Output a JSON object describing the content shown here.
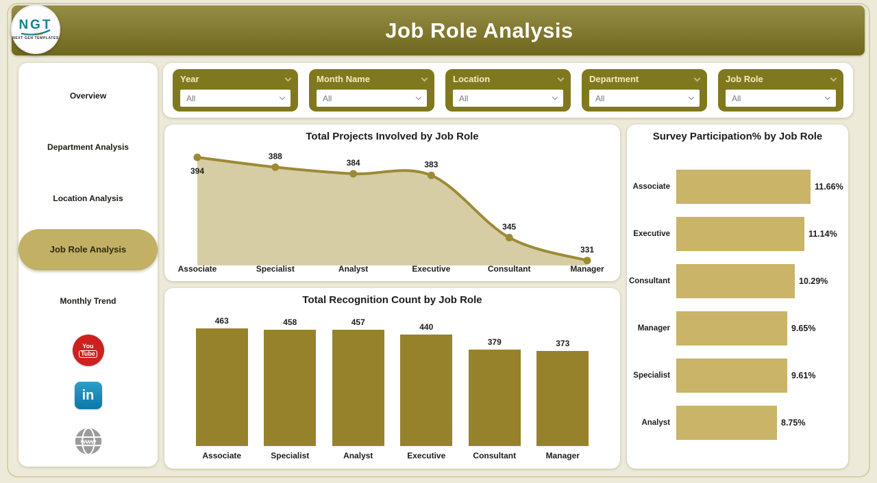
{
  "header": {
    "title": "Job Role Analysis",
    "logo": {
      "text": "NGT",
      "subtext": "NEXT GEN TEMPLATES"
    }
  },
  "filters": {
    "items": [
      {
        "label": "Year",
        "value": "All"
      },
      {
        "label": "Month Name",
        "value": "All"
      },
      {
        "label": "Location",
        "value": "All"
      },
      {
        "label": "Department",
        "value": "All"
      },
      {
        "label": "Job Role",
        "value": "All"
      }
    ]
  },
  "sidebar": {
    "items": [
      {
        "label": "Overview",
        "active": false
      },
      {
        "label": "Department Analysis",
        "active": false
      },
      {
        "label": "Location Analysis",
        "active": false
      },
      {
        "label": "Job Role Analysis",
        "active": true
      },
      {
        "label": "Monthly Trend",
        "active": false
      }
    ],
    "social": [
      {
        "name": "youtube",
        "lines": [
          "You",
          "Tube"
        ],
        "color": "#cd201f"
      },
      {
        "name": "linkedin",
        "lines": [
          "in"
        ],
        "color": "#0e76a8"
      },
      {
        "name": "website",
        "lines": [
          "www"
        ],
        "color": "#9b9b9b"
      }
    ]
  },
  "theme": {
    "page_bg": "#edead9",
    "header_gradient_top": "#958d45",
    "header_gradient_bottom": "#6e671c",
    "filter_tile": "#80781f",
    "filter_title_text": "#f3edbe",
    "active_pill": "#c2b065",
    "line_color": "#9d8a34",
    "area_fill": "#d6cda5",
    "bar_color": "#97822c",
    "hbar_color": "#c9b468"
  },
  "chart_data": [
    {
      "type": "area",
      "title": "Total Projects Involved by Job Role",
      "categories": [
        "Associate",
        "Specialist",
        "Analyst",
        "Executive",
        "Consultant",
        "Manager"
      ],
      "values": [
        394,
        388,
        384,
        383,
        345,
        331
      ],
      "ylim": [
        328,
        400
      ],
      "grid": false,
      "data_labels": true,
      "legend": "none"
    },
    {
      "type": "bar",
      "title": "Total Recognition Count by Job Role",
      "categories": [
        "Associate",
        "Specialist",
        "Analyst",
        "Executive",
        "Consultant",
        "Manager"
      ],
      "values": [
        463,
        458,
        457,
        440,
        379,
        373
      ],
      "ylim": [
        0,
        463
      ],
      "grid": false,
      "data_labels": true,
      "legend": "none"
    },
    {
      "type": "bar-horizontal",
      "title": "Survey Participation% by Job Role",
      "categories": [
        "Associate",
        "Executive",
        "Consultant",
        "Manager",
        "Specialist",
        "Analyst"
      ],
      "values": [
        11.66,
        11.14,
        10.29,
        9.65,
        9.61,
        8.75
      ],
      "value_labels": [
        "11.66%",
        "11.14%",
        "10.29%",
        "9.65%",
        "9.61%",
        "8.75%"
      ],
      "xlim": [
        0,
        11.66
      ],
      "grid": false,
      "legend": "none"
    }
  ]
}
